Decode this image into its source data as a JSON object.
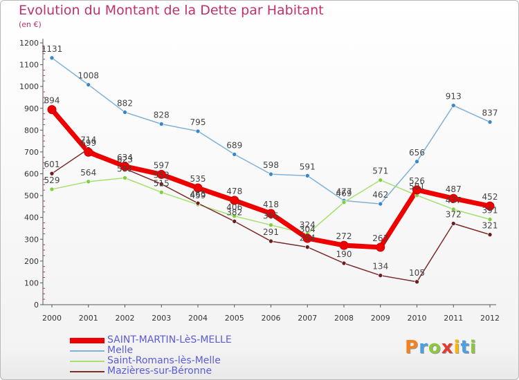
{
  "header": {
    "title": "Evolution du Montant de la Dette par Habitant",
    "subtitle": "(en €)"
  },
  "logo": {
    "text": "Proxiti",
    "letter_colors": [
      "#f58220",
      "#4aa0e0",
      "#8dc63f",
      "#e03c31",
      "#f7b500",
      "#4aa0e0",
      "#8dc63f"
    ]
  },
  "colors": {
    "axis": "#555555",
    "grid_tick": "#c0306a",
    "value_label": "#444444"
  },
  "chart_data": {
    "type": "line",
    "title": "Evolution du Montant de la Dette par Habitant",
    "subtitle": "(en €)",
    "xlabel": "",
    "ylabel": "",
    "x": [
      "2000",
      "2001",
      "2002",
      "2003",
      "2004",
      "2005",
      "2006",
      "2007",
      "2008",
      "2009",
      "2010",
      "2011",
      "2012"
    ],
    "ylim": [
      0,
      1200
    ],
    "yticks": [
      0,
      100,
      200,
      300,
      400,
      500,
      600,
      700,
      800,
      900,
      1000,
      1100,
      1200
    ],
    "grid": false,
    "legend_position": "bottom-left",
    "series": [
      {
        "name": "SAINT-MARTIN-LèS-MELLE",
        "color": "#ee0000",
        "marker": "#ee0000",
        "width": 7,
        "values": [
          894,
          699,
          634,
          597,
          535,
          478,
          418,
          304,
          272,
          263,
          526,
          487,
          452
        ]
      },
      {
        "name": "Melle",
        "color": "#7fb0d8",
        "marker": "#3c87c8",
        "width": 1.5,
        "values": [
          1131,
          1008,
          882,
          828,
          795,
          689,
          598,
          591,
          477,
          462,
          656,
          913,
          837
        ]
      },
      {
        "name": "Saint-Romans-lès-Melle",
        "color": "#a6e070",
        "marker": "#7fd040",
        "width": 1.5,
        "values": [
          529,
          564,
          581,
          515,
          459,
          406,
          365,
          324,
          469,
          571,
          501,
          437,
          391
        ]
      },
      {
        "name": "Mazières-sur-Béronne",
        "color": "#7a2a2a",
        "marker": "#6a1e1e",
        "width": 1.5,
        "values": [
          601,
          714,
          623,
          553,
          465,
          382,
          291,
          264,
          190,
          134,
          105,
          372,
          321
        ]
      }
    ]
  }
}
